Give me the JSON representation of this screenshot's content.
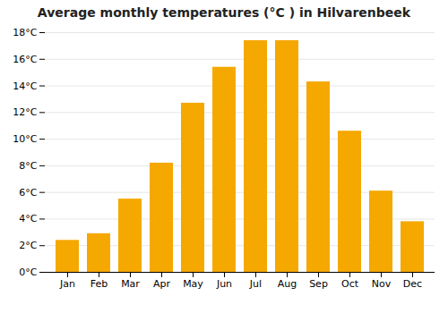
{
  "chart_data": {
    "type": "bar",
    "title": "Average monthly temperatures (°C ) in Hilvarenbeek",
    "categories": [
      "Jan",
      "Feb",
      "Mar",
      "Apr",
      "May",
      "Jun",
      "Jul",
      "Aug",
      "Sep",
      "Oct",
      "Nov",
      "Dec"
    ],
    "values": [
      2.4,
      2.9,
      5.5,
      8.2,
      12.7,
      15.4,
      17.4,
      17.4,
      14.3,
      10.6,
      6.1,
      3.8
    ],
    "color": "#F5A800",
    "ylim": [
      0,
      18
    ],
    "yticks": [
      {
        "value": 0,
        "label": "0°C"
      },
      {
        "value": 2,
        "label": "2°C"
      },
      {
        "value": 4,
        "label": "4°C"
      },
      {
        "value": 6,
        "label": "6°C"
      },
      {
        "value": 8,
        "label": "8°C"
      },
      {
        "value": 10,
        "label": "10°C"
      },
      {
        "value": 12,
        "label": "12°C"
      },
      {
        "value": 14,
        "label": "14°C"
      },
      {
        "value": 16,
        "label": "16°C"
      },
      {
        "value": 18,
        "label": "18°C"
      }
    ],
    "grid": true
  }
}
